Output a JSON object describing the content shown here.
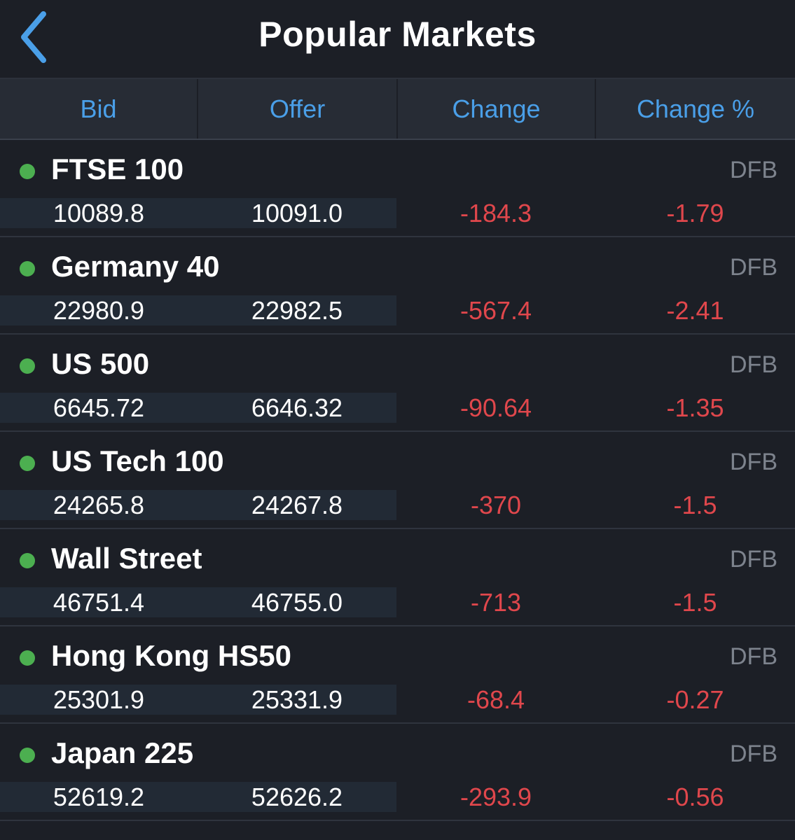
{
  "header": {
    "title": "Popular Markets",
    "accent_color": "#4a9fe8",
    "back_icon": "chevron-left-icon"
  },
  "columns": {
    "bid": "Bid",
    "offer": "Offer",
    "change": "Change",
    "change_pct": "Change %"
  },
  "markets": [
    {
      "name": "FTSE 100",
      "tag": "DFB",
      "bid": "10089.8",
      "offer": "10091.0",
      "change": "-184.3",
      "change_pct": "-1.79"
    },
    {
      "name": "Germany 40",
      "tag": "DFB",
      "bid": "22980.9",
      "offer": "22982.5",
      "change": "-567.4",
      "change_pct": "-2.41"
    },
    {
      "name": "US 500",
      "tag": "DFB",
      "bid": "6645.72",
      "offer": "6646.32",
      "change": "-90.64",
      "change_pct": "-1.35"
    },
    {
      "name": "US Tech 100",
      "tag": "DFB",
      "bid": "24265.8",
      "offer": "24267.8",
      "change": "-370",
      "change_pct": "-1.5"
    },
    {
      "name": "Wall Street",
      "tag": "DFB",
      "bid": "46751.4",
      "offer": "46755.0",
      "change": "-713",
      "change_pct": "-1.5"
    },
    {
      "name": "Hong Kong HS50",
      "tag": "DFB",
      "bid": "25301.9",
      "offer": "25331.9",
      "change": "-68.4",
      "change_pct": "-0.27"
    },
    {
      "name": "Japan 225",
      "tag": "DFB",
      "bid": "52619.2",
      "offer": "52626.2",
      "change": "-293.9",
      "change_pct": "-0.56"
    }
  ],
  "status_colors": {
    "market_open_dot": "#4caf50",
    "negative_change": "#e0474c"
  }
}
